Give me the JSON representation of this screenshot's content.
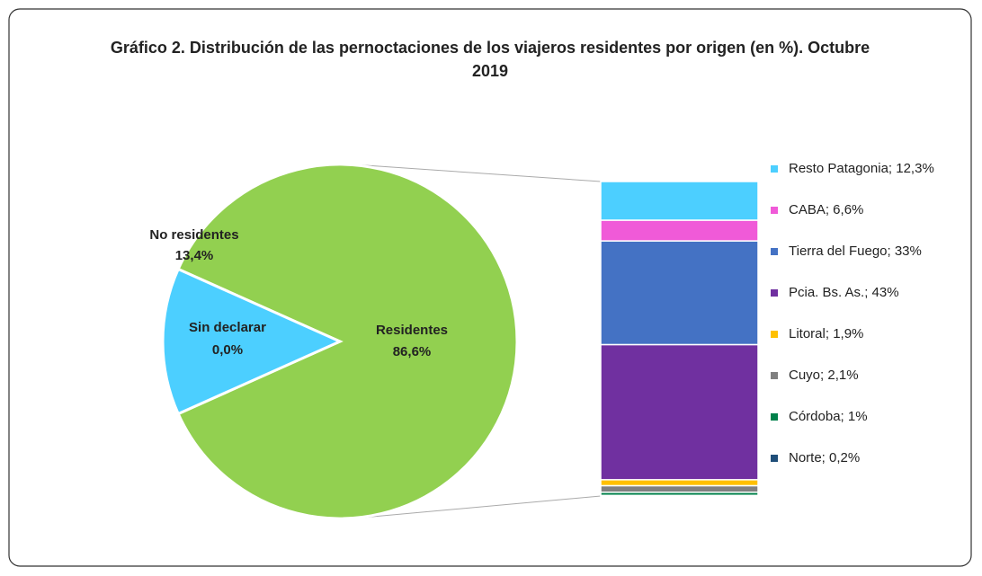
{
  "chart_data": [
    {
      "type": "pie",
      "title": "Gráfico 2. Distribución de las pernoctaciones de los viajeros residentes por origen (en %). Octubre 2019",
      "categories": [
        "Residentes",
        "No residentes",
        "Sin declarar"
      ],
      "values": [
        86.6,
        13.4,
        0.0
      ],
      "value_labels": [
        "86,6%",
        "13,4%",
        "0,0%"
      ],
      "colors": [
        "#92d050",
        "#4ccfff",
        "#7f7f7f"
      ]
    },
    {
      "type": "stacked-bar",
      "series": [
        {
          "name": "Resto Patagonia; 12,3%",
          "color": "#4ccfff",
          "values": [
            12.3
          ]
        },
        {
          "name": "CABA; 6,6%",
          "color": "#f05ad8",
          "values": [
            6.6
          ]
        },
        {
          "name": "Tierra del Fuego; 33%",
          "color": "#4472c4",
          "values": [
            33
          ]
        },
        {
          "name": "Pcia. Bs. As.; 43%",
          "color": "#7030a0",
          "values": [
            43
          ]
        },
        {
          "name": "Litoral; 1,9%",
          "color": "#ffc000",
          "values": [
            1.9
          ]
        },
        {
          "name": "Cuyo; 2,1%",
          "color": "#808080",
          "values": [
            2.1
          ]
        },
        {
          "name": "Córdoba; 1%",
          "color": "#00804a",
          "values": [
            1
          ]
        },
        {
          "name": "Norte; 0,2%",
          "color": "#1f4e79",
          "values": [
            0.2
          ]
        }
      ]
    }
  ]
}
